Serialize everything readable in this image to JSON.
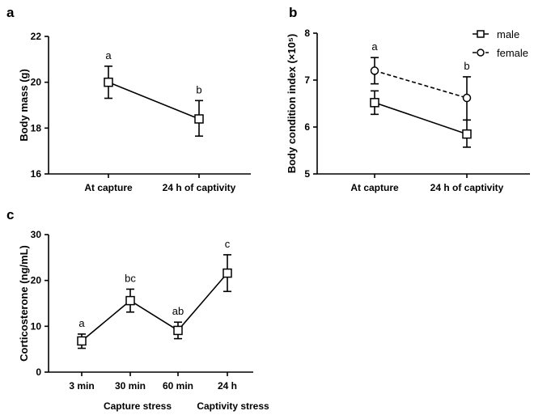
{
  "figure": {
    "panels": [
      "a",
      "b",
      "c"
    ]
  },
  "chart_data": [
    {
      "panel": "a",
      "type": "line",
      "categories": [
        "At capture",
        "24 h of captivity"
      ],
      "series": [
        {
          "values": [
            20.0,
            18.4
          ],
          "err_low": [
            19.3,
            17.65
          ],
          "err_high": [
            20.7,
            19.2
          ],
          "marker": "square",
          "dash": "solid"
        }
      ],
      "sig_labels": [
        "a",
        "b"
      ],
      "ylabel": "Body mass (g)",
      "ylim": [
        16,
        22
      ],
      "yticks": [
        16,
        18,
        20,
        22
      ],
      "grid": false,
      "legend": "none"
    },
    {
      "panel": "b",
      "type": "line",
      "categories": [
        "At capture",
        "24 h of captivity"
      ],
      "series": [
        {
          "name": "male",
          "values": [
            6.52,
            5.85
          ],
          "err_low": [
            6.27,
            5.57
          ],
          "err_high": [
            6.77,
            6.15
          ],
          "marker": "square",
          "dash": "solid"
        },
        {
          "name": "female",
          "values": [
            7.2,
            6.62
          ],
          "err_low": [
            6.92,
            6.15
          ],
          "err_high": [
            7.48,
            7.07
          ],
          "marker": "circle",
          "dash": "dashed"
        }
      ],
      "sig_labels": [
        "a",
        "b"
      ],
      "ylabel": "Body condition index (×10⁵)",
      "ylim": [
        5,
        8
      ],
      "yticks": [
        5,
        6,
        7,
        8
      ],
      "grid": false,
      "legend": "top-right"
    },
    {
      "panel": "c",
      "type": "line",
      "categories": [
        "3 min",
        "30 min",
        "60 min",
        "24 h"
      ],
      "group_labels": [
        "Capture stress",
        "Captivity stress"
      ],
      "series": [
        {
          "values": [
            6.8,
            15.6,
            9.1,
            21.6
          ],
          "err_low": [
            5.2,
            13.1,
            7.3,
            17.6
          ],
          "err_high": [
            8.3,
            18.1,
            10.9,
            25.6
          ],
          "marker": "square",
          "dash": "solid"
        }
      ],
      "sig_labels": [
        "a",
        "bc",
        "ab",
        "c"
      ],
      "ylabel": "Corticosterone (ng/mL)",
      "ylim": [
        0,
        30
      ],
      "yticks": [
        0,
        10,
        20,
        30
      ],
      "grid": false,
      "legend": "none"
    }
  ]
}
